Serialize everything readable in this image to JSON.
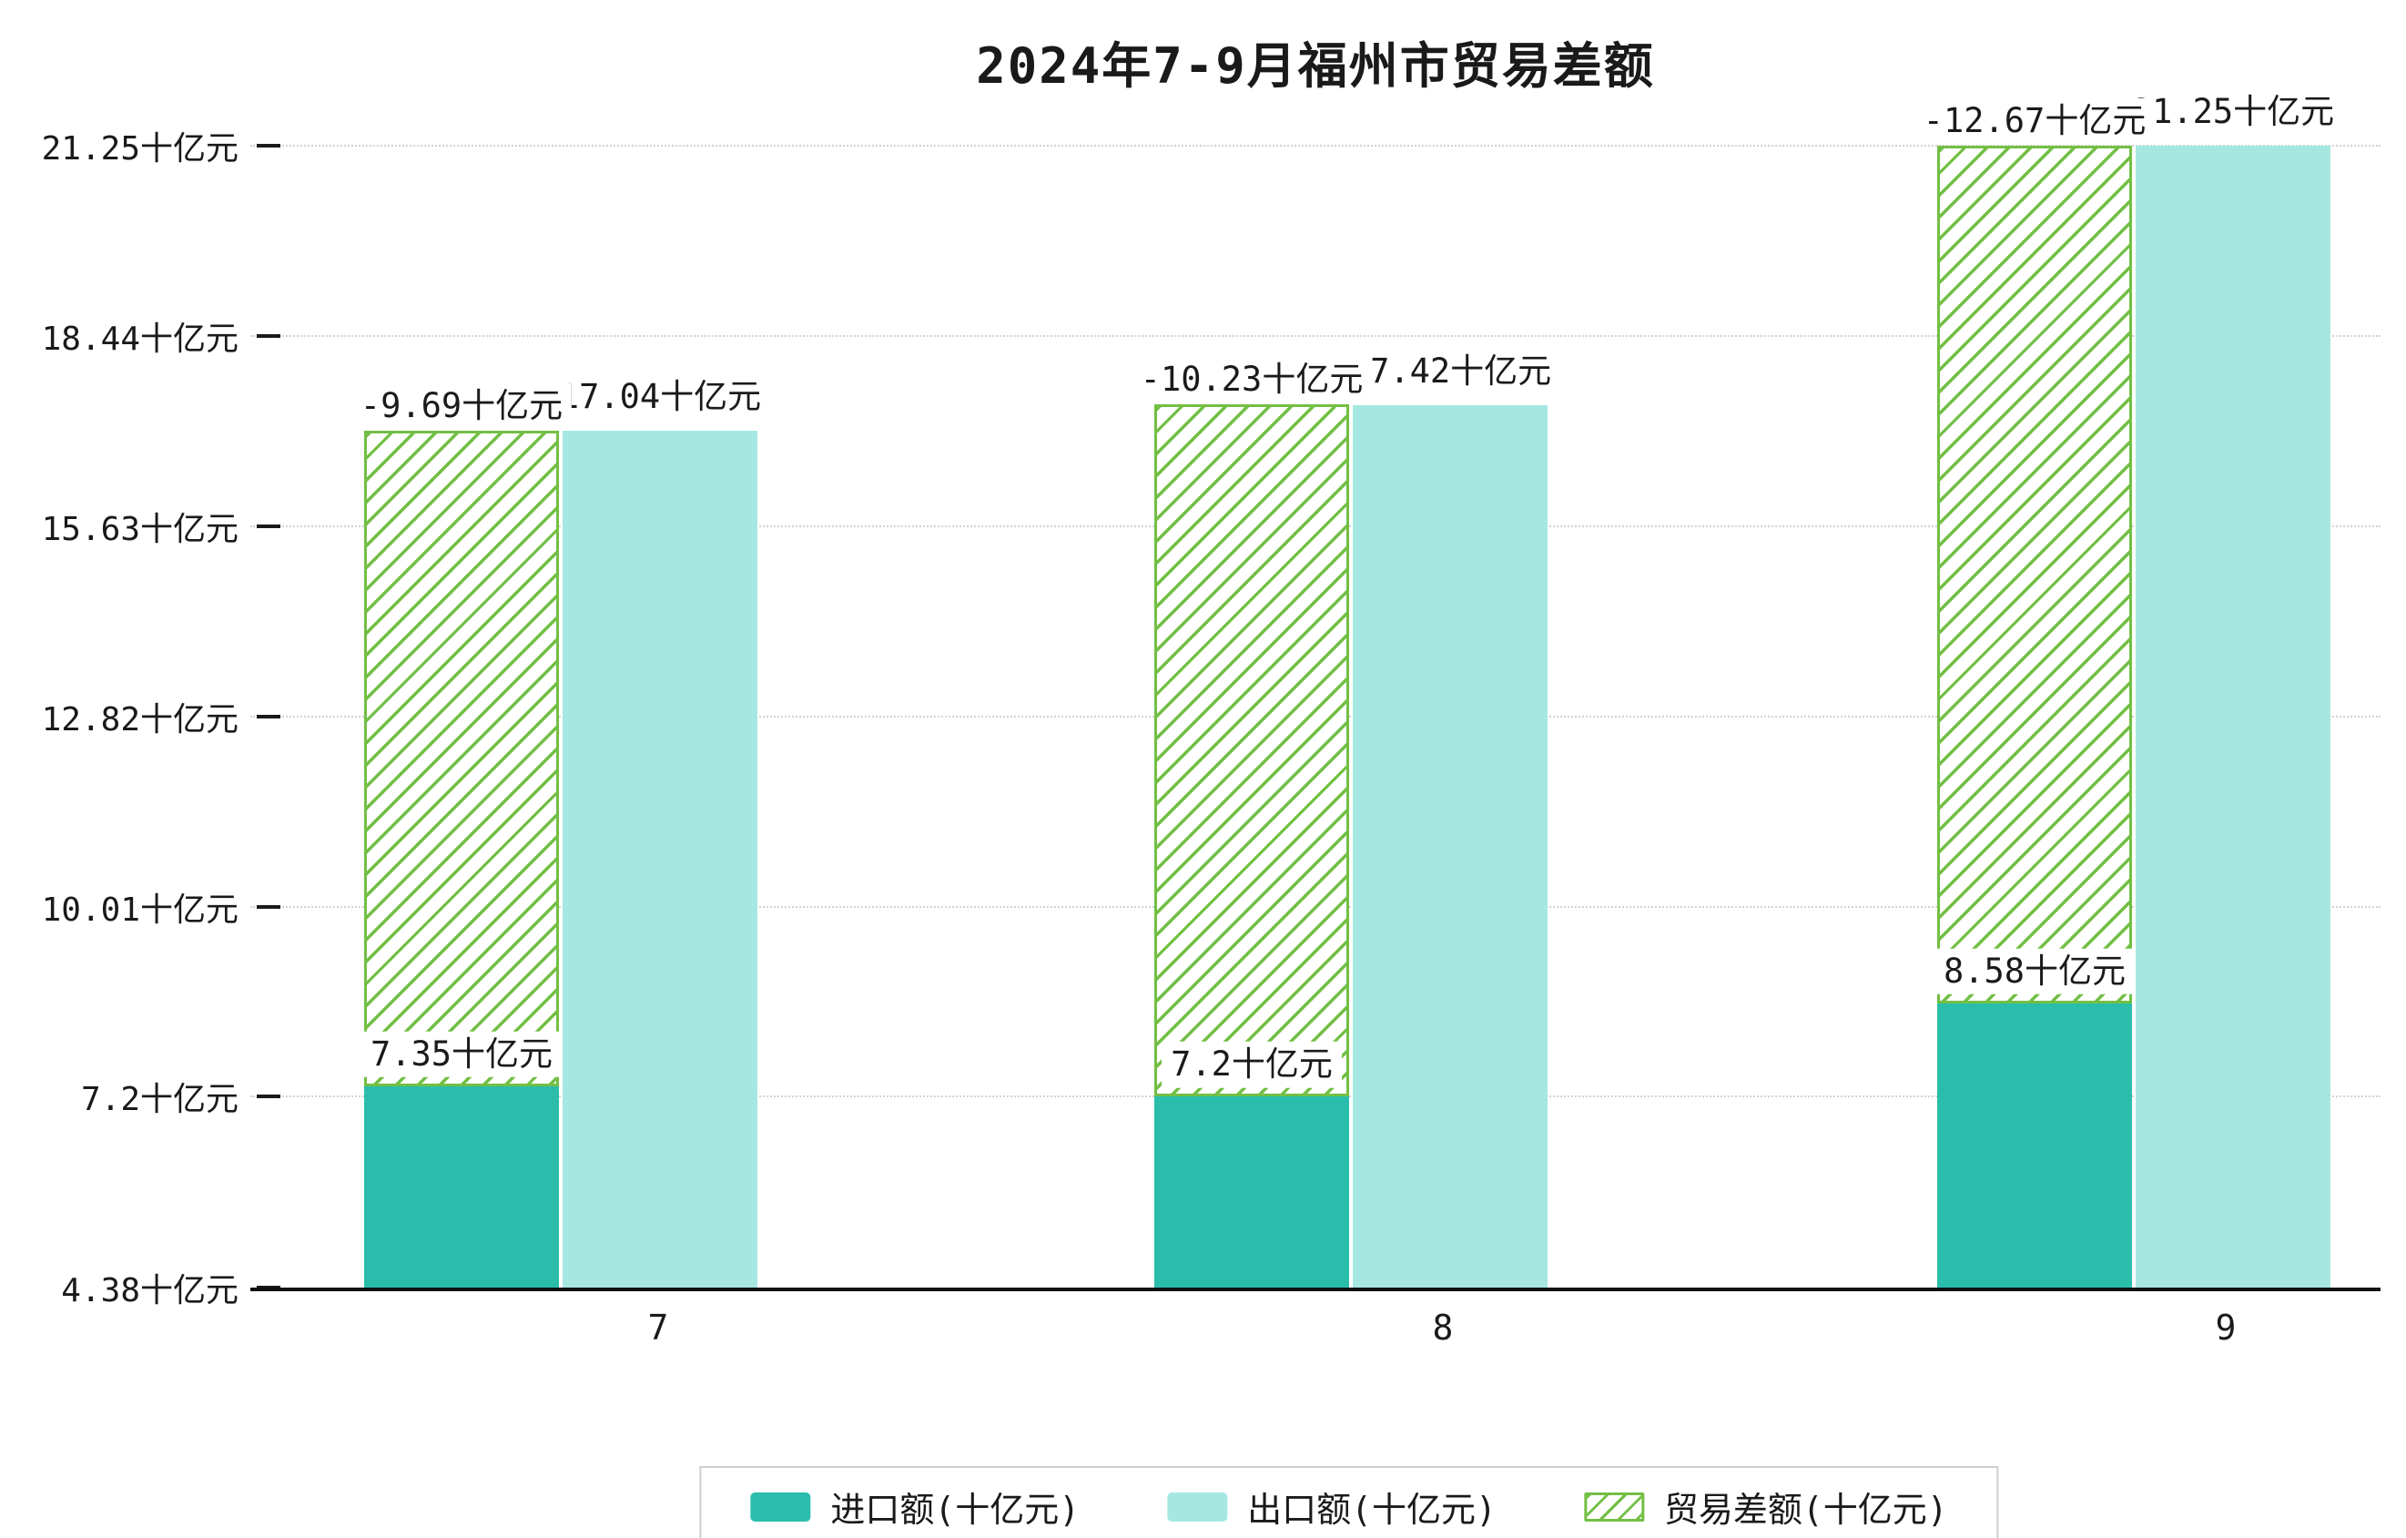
{
  "title": "2024年7-9月福州市贸易差额",
  "chart_data": {
    "type": "bar",
    "title": "2024年7-9月福州市贸易差额",
    "categories": [
      "7",
      "8",
      "9"
    ],
    "unit": "十亿元",
    "series": [
      {
        "name": "进口额(十亿元)",
        "key": "import",
        "values": [
          7.35,
          7.2,
          8.58
        ],
        "labels": [
          "7.35十亿元",
          "7.2十亿元",
          "8.58十亿元"
        ],
        "color": "#2abdab",
        "style": "solid"
      },
      {
        "name": "出口额(十亿元)",
        "key": "export",
        "values": [
          17.04,
          17.42,
          21.25
        ],
        "labels": [
          "17.04十亿元",
          "17.42十亿元",
          "21.25十亿元"
        ],
        "color": "#a6e8e1",
        "style": "solid"
      },
      {
        "name": "贸易差额(十亿元)",
        "key": "trade-balance",
        "values": [
          -9.69,
          -10.23,
          -12.67
        ],
        "labels": [
          "-9.69十亿元",
          "-10.23十亿元",
          "-12.67十亿元"
        ],
        "color": "#72bf44",
        "style": "hatched",
        "render": "stacked-on-import"
      }
    ],
    "y_ticks": [
      4.38,
      7.2,
      10.01,
      12.82,
      15.63,
      18.44,
      21.25
    ],
    "y_tick_labels": [
      "4.38十亿元",
      "7.2十亿元",
      "10.01十亿元",
      "12.82十亿元",
      "15.63十亿元",
      "18.44十亿元",
      "21.25十亿元"
    ],
    "ylim": [
      4.38,
      21.25
    ],
    "grid": true,
    "legend_position": "bottom"
  }
}
